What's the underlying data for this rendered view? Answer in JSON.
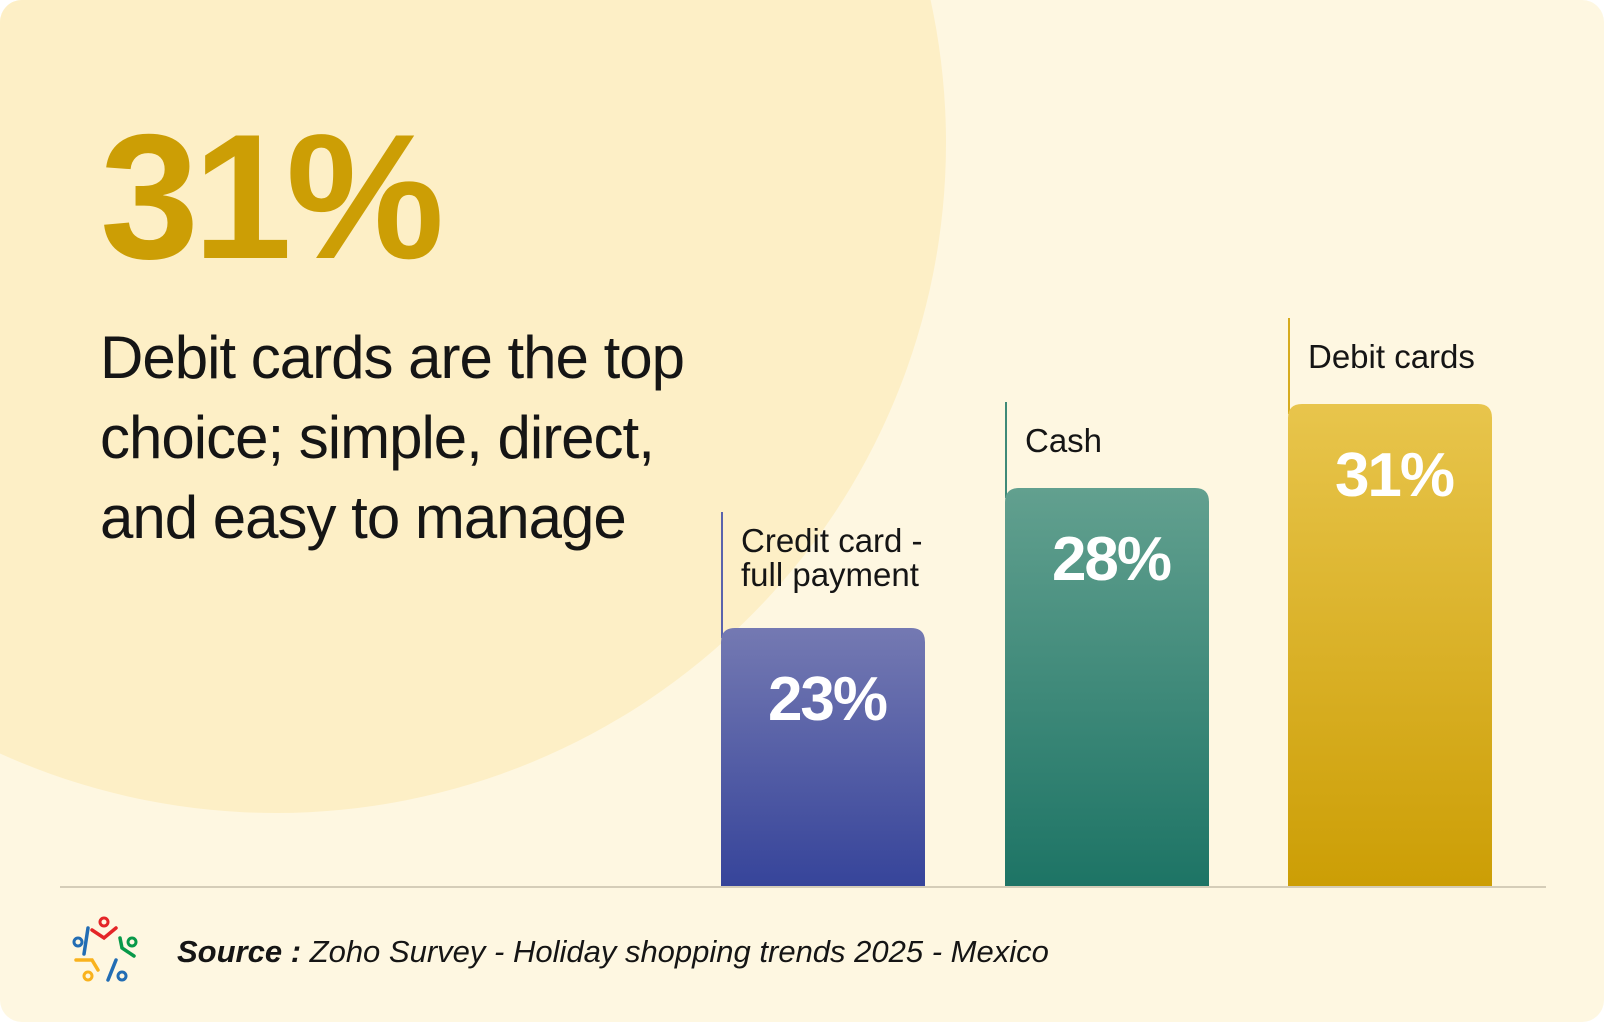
{
  "headline": {
    "stat": "31%",
    "text": "Debit cards are the top choice; simple, direct, and easy to manage"
  },
  "chart_data": {
    "type": "bar",
    "categories": [
      "Credit card - full payment",
      "Cash",
      "Debit cards"
    ],
    "label_lines": [
      [
        "Credit card -",
        "full payment"
      ],
      [
        "Cash"
      ],
      [
        "Debit cards"
      ]
    ],
    "values": [
      23,
      28,
      31
    ],
    "data_labels": [
      "23%",
      "28%",
      "31%"
    ],
    "colors": [
      [
        "#7479b2",
        "#36449a"
      ],
      [
        "#62a08f",
        "#1d7465"
      ],
      [
        "#e8c54c",
        "#cc9e05"
      ]
    ],
    "line_colors": [
      "#5a63ad",
      "#3f8a78",
      "#d6ab1e"
    ],
    "title": "",
    "xlabel": "",
    "ylabel": "",
    "grid": false
  },
  "source": {
    "label": "Source :",
    "text": " Zoho Survey - Holiday shopping trends 2025  - Mexico"
  },
  "logo": {
    "name": "zoho-survey-logo"
  }
}
